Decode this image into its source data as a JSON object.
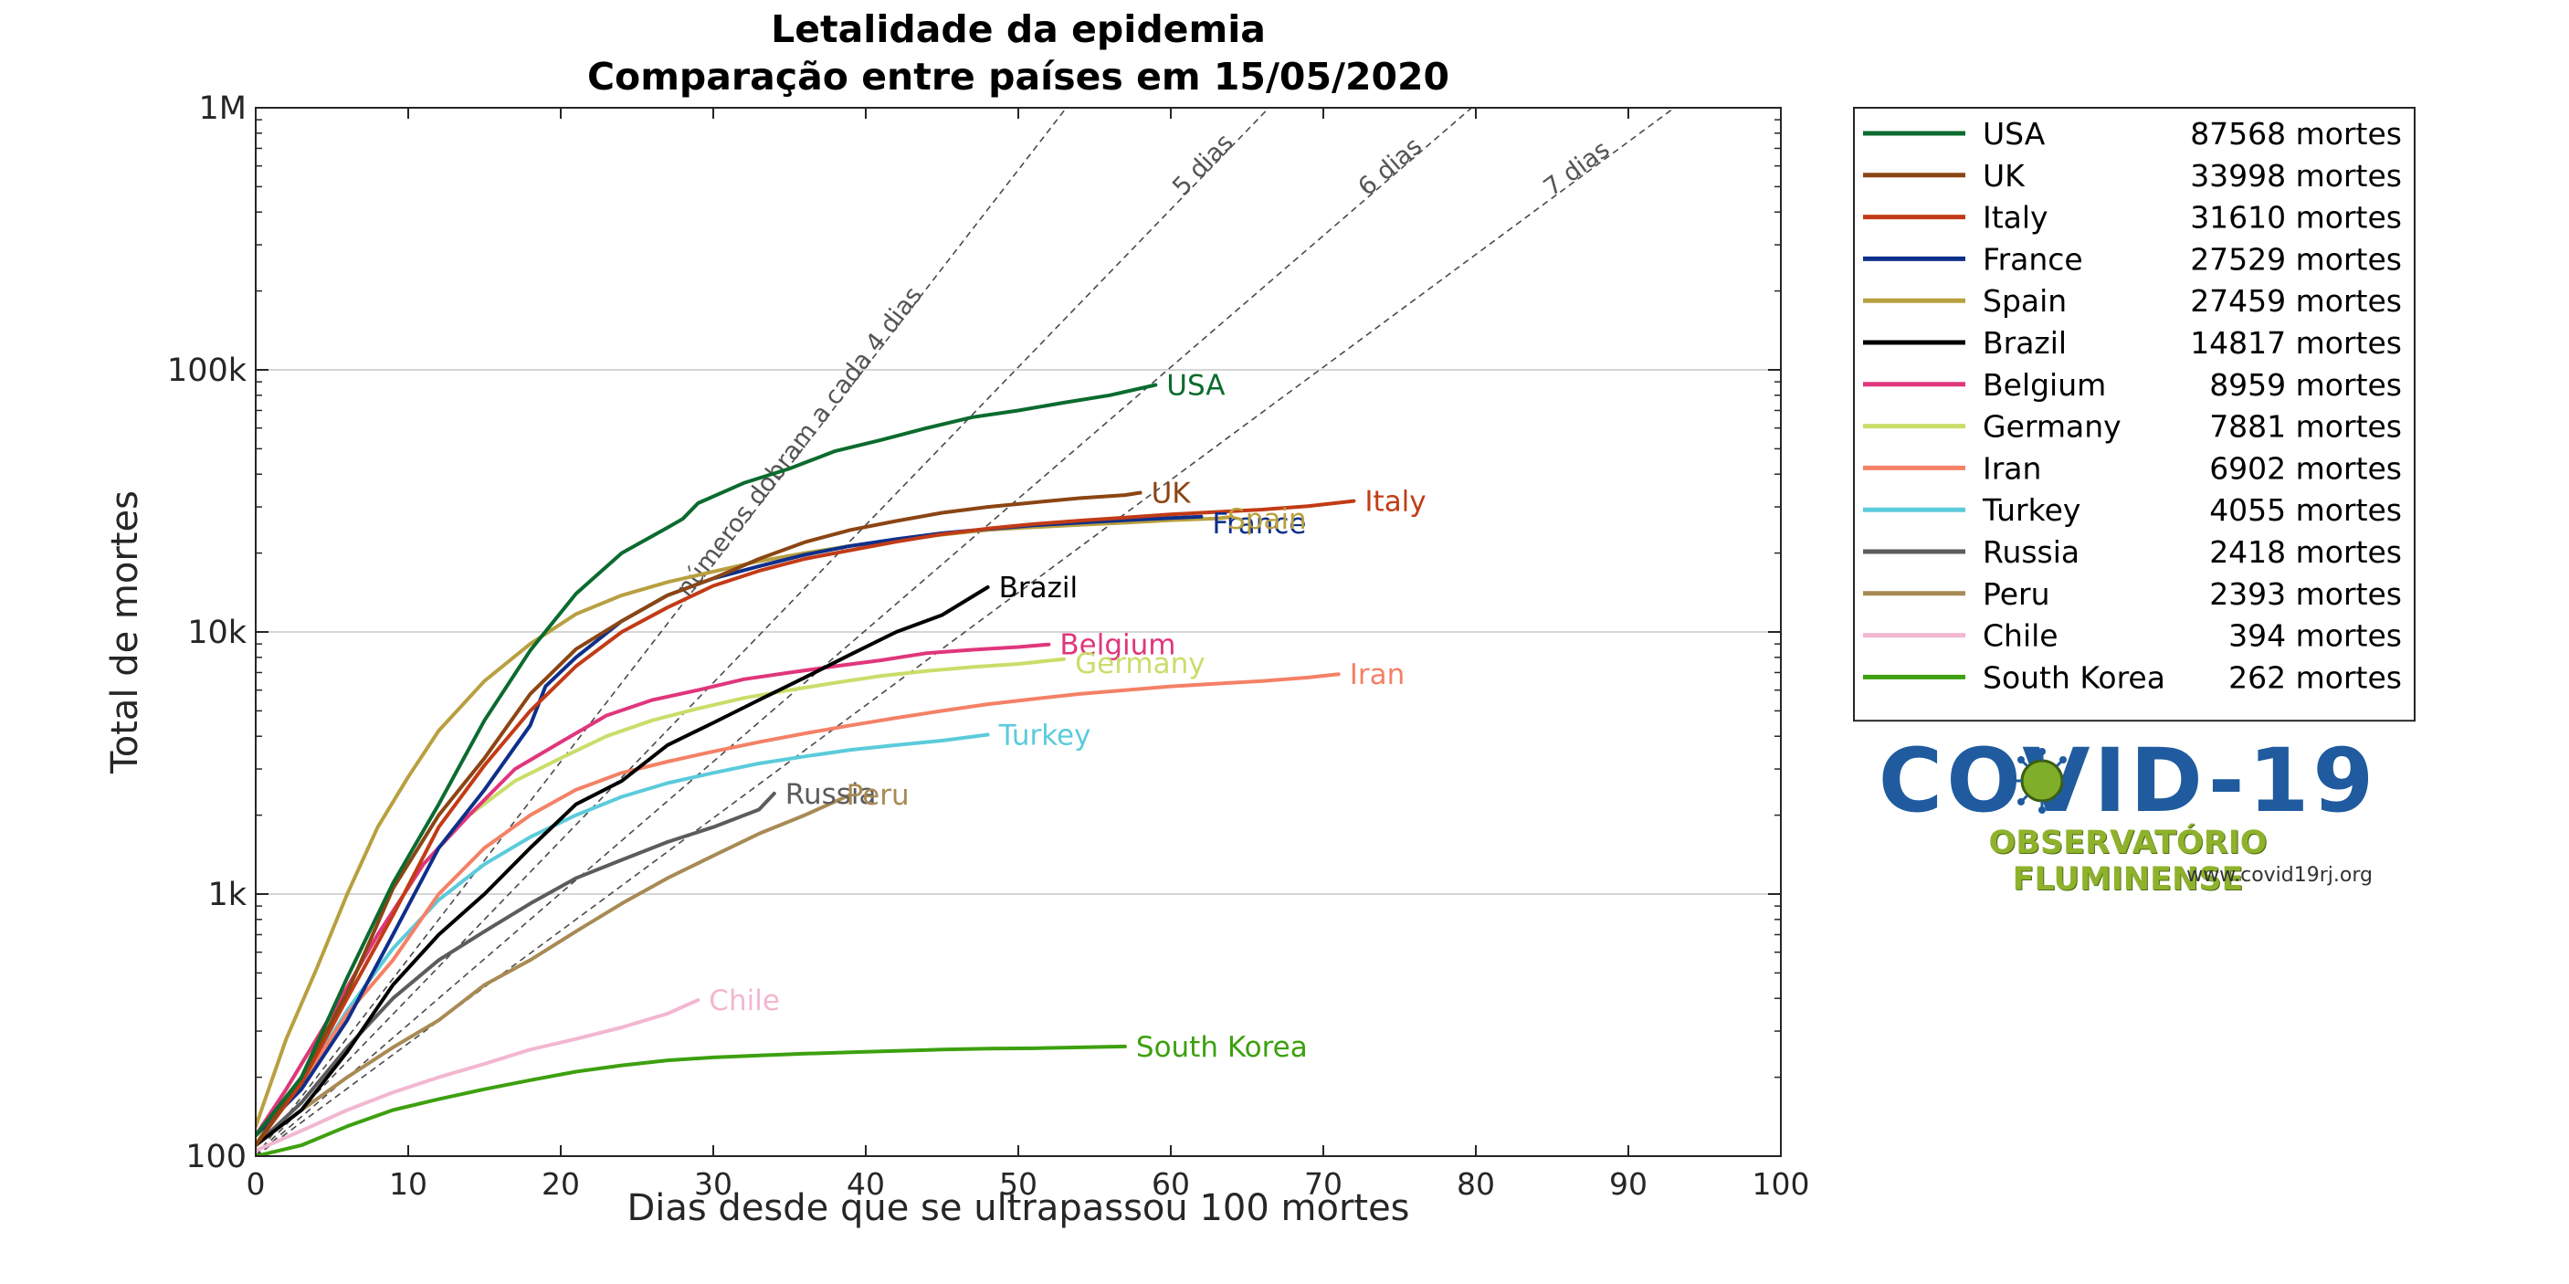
{
  "chart_data": {
    "type": "line",
    "title": "Letalidade da epidemia",
    "subtitle": "Comparação entre países em 15/05/2020",
    "xlabel": "Dias desde que se ultrapassou 100 mortes",
    "ylabel": "Total de mortes",
    "xlim": [
      0,
      100
    ],
    "ylim": [
      100,
      1000000
    ],
    "yscale": "log",
    "x_ticks": [
      "0",
      "10",
      "20",
      "30",
      "40",
      "50",
      "60",
      "70",
      "80",
      "90",
      "100"
    ],
    "y_ticks": [
      "100",
      "1k",
      "10k",
      "100k",
      "1M"
    ],
    "grid": "horizontal",
    "legend_position": "right",
    "legend_suffix": "mortes",
    "doubling_guides": [
      {
        "label": "números dobram a cada 4 dias",
        "days": 4
      },
      {
        "label": "5 dias",
        "days": 5
      },
      {
        "label": "6 dias",
        "days": 6
      },
      {
        "label": "7 dias",
        "days": 7
      }
    ],
    "series": [
      {
        "name": "USA",
        "total": 87568,
        "color": "#0b6b2e",
        "points": [
          [
            0,
            120
          ],
          [
            3,
            200
          ],
          [
            6,
            480
          ],
          [
            9,
            1100
          ],
          [
            12,
            2200
          ],
          [
            15,
            4600
          ],
          [
            18,
            8500
          ],
          [
            21,
            14000
          ],
          [
            24,
            20000
          ],
          [
            27,
            25000
          ],
          [
            28,
            27000
          ],
          [
            29,
            31000
          ],
          [
            32,
            37000
          ],
          [
            35,
            42000
          ],
          [
            38,
            49000
          ],
          [
            41,
            54000
          ],
          [
            44,
            60000
          ],
          [
            47,
            66000
          ],
          [
            50,
            70000
          ],
          [
            53,
            75000
          ],
          [
            56,
            80000
          ],
          [
            59,
            87568
          ]
        ]
      },
      {
        "name": "UK",
        "total": 33998,
        "color": "#8b4513",
        "points": [
          [
            0,
            110
          ],
          [
            3,
            200
          ],
          [
            6,
            420
          ],
          [
            9,
            1050
          ],
          [
            12,
            2000
          ],
          [
            15,
            3300
          ],
          [
            18,
            5800
          ],
          [
            21,
            8600
          ],
          [
            24,
            11000
          ],
          [
            27,
            13800
          ],
          [
            30,
            16000
          ],
          [
            33,
            19000
          ],
          [
            36,
            22000
          ],
          [
            39,
            24500
          ],
          [
            42,
            26500
          ],
          [
            45,
            28500
          ],
          [
            48,
            30000
          ],
          [
            51,
            31200
          ],
          [
            54,
            32400
          ],
          [
            57,
            33300
          ],
          [
            58,
            33998
          ]
        ]
      },
      {
        "name": "Italy",
        "total": 31610,
        "color": "#c23b16",
        "points": [
          [
            0,
            110
          ],
          [
            3,
            190
          ],
          [
            6,
            400
          ],
          [
            9,
            830
          ],
          [
            12,
            1800
          ],
          [
            15,
            3100
          ],
          [
            18,
            5000
          ],
          [
            21,
            7400
          ],
          [
            24,
            10000
          ],
          [
            27,
            12400
          ],
          [
            30,
            15000
          ],
          [
            33,
            17100
          ],
          [
            36,
            19000
          ],
          [
            39,
            20500
          ],
          [
            42,
            22100
          ],
          [
            45,
            23600
          ],
          [
            48,
            24800
          ],
          [
            51,
            25800
          ],
          [
            54,
            26600
          ],
          [
            57,
            27300
          ],
          [
            60,
            28100
          ],
          [
            63,
            28700
          ],
          [
            66,
            29300
          ],
          [
            69,
            30200
          ],
          [
            72,
            31610
          ]
        ]
      },
      {
        "name": "France",
        "total": 27529,
        "color": "#0e2f8a",
        "points": [
          [
            0,
            120
          ],
          [
            3,
            180
          ],
          [
            6,
            330
          ],
          [
            9,
            700
          ],
          [
            12,
            1500
          ],
          [
            15,
            2500
          ],
          [
            18,
            4400
          ],
          [
            19,
            6200
          ],
          [
            21,
            8000
          ],
          [
            24,
            11000
          ],
          [
            27,
            13800
          ],
          [
            30,
            16000
          ],
          [
            33,
            17800
          ],
          [
            36,
            19700
          ],
          [
            39,
            21300
          ],
          [
            42,
            22600
          ],
          [
            45,
            23800
          ],
          [
            48,
            24700
          ],
          [
            51,
            25500
          ],
          [
            54,
            26100
          ],
          [
            57,
            26700
          ],
          [
            60,
            27200
          ],
          [
            62,
            27529
          ]
        ]
      },
      {
        "name": "Spain",
        "total": 27459,
        "color": "#b8a040",
        "points": [
          [
            0,
            130
          ],
          [
            2,
            280
          ],
          [
            4,
            520
          ],
          [
            6,
            1000
          ],
          [
            8,
            1800
          ],
          [
            10,
            2800
          ],
          [
            12,
            4200
          ],
          [
            15,
            6500
          ],
          [
            18,
            9000
          ],
          [
            21,
            11700
          ],
          [
            24,
            13800
          ],
          [
            27,
            15500
          ],
          [
            30,
            17000
          ],
          [
            33,
            18600
          ],
          [
            36,
            20000
          ],
          [
            39,
            21300
          ],
          [
            42,
            22500
          ],
          [
            45,
            23500
          ],
          [
            48,
            24500
          ],
          [
            51,
            25100
          ],
          [
            54,
            25600
          ],
          [
            57,
            26100
          ],
          [
            60,
            26700
          ],
          [
            63,
            27100
          ],
          [
            64,
            27459
          ]
        ]
      },
      {
        "name": "Brazil",
        "total": 14817,
        "color": "#000000",
        "points": [
          [
            0,
            110
          ],
          [
            3,
            150
          ],
          [
            6,
            250
          ],
          [
            9,
            450
          ],
          [
            12,
            700
          ],
          [
            15,
            1000
          ],
          [
            18,
            1500
          ],
          [
            21,
            2200
          ],
          [
            24,
            2700
          ],
          [
            27,
            3700
          ],
          [
            30,
            4500
          ],
          [
            33,
            5500
          ],
          [
            36,
            6700
          ],
          [
            39,
            8200
          ],
          [
            42,
            10000
          ],
          [
            45,
            11600
          ],
          [
            48,
            14817
          ]
        ]
      },
      {
        "name": "Belgium",
        "total": 8959,
        "color": "#e0367c",
        "points": [
          [
            0,
            120
          ],
          [
            2,
            180
          ],
          [
            5,
            350
          ],
          [
            8,
            700
          ],
          [
            11,
            1300
          ],
          [
            14,
            2000
          ],
          [
            17,
            3000
          ],
          [
            20,
            3800
          ],
          [
            23,
            4800
          ],
          [
            26,
            5500
          ],
          [
            29,
            6000
          ],
          [
            32,
            6600
          ],
          [
            35,
            7000
          ],
          [
            38,
            7400
          ],
          [
            41,
            7800
          ],
          [
            44,
            8300
          ],
          [
            47,
            8550
          ],
          [
            50,
            8760
          ],
          [
            52,
            8959
          ]
        ]
      },
      {
        "name": "Germany",
        "total": 7881,
        "color": "#c8de6a",
        "points": [
          [
            0,
            110
          ],
          [
            2,
            180
          ],
          [
            5,
            350
          ],
          [
            8,
            700
          ],
          [
            11,
            1300
          ],
          [
            14,
            2000
          ],
          [
            17,
            2700
          ],
          [
            20,
            3300
          ],
          [
            23,
            4000
          ],
          [
            26,
            4600
          ],
          [
            29,
            5100
          ],
          [
            32,
            5600
          ],
          [
            35,
            6000
          ],
          [
            38,
            6400
          ],
          [
            41,
            6800
          ],
          [
            44,
            7100
          ],
          [
            47,
            7350
          ],
          [
            50,
            7550
          ],
          [
            53,
            7881
          ]
        ]
      },
      {
        "name": "Iran",
        "total": 6902,
        "color": "#f48166",
        "points": [
          [
            0,
            110
          ],
          [
            3,
            190
          ],
          [
            6,
            350
          ],
          [
            9,
            560
          ],
          [
            12,
            1000
          ],
          [
            15,
            1500
          ],
          [
            18,
            2000
          ],
          [
            21,
            2500
          ],
          [
            24,
            2900
          ],
          [
            27,
            3200
          ],
          [
            30,
            3500
          ],
          [
            33,
            3800
          ],
          [
            36,
            4100
          ],
          [
            39,
            4400
          ],
          [
            42,
            4700
          ],
          [
            45,
            5000
          ],
          [
            48,
            5300
          ],
          [
            51,
            5550
          ],
          [
            54,
            5800
          ],
          [
            57,
            6000
          ],
          [
            60,
            6200
          ],
          [
            63,
            6350
          ],
          [
            66,
            6500
          ],
          [
            69,
            6700
          ],
          [
            71,
            6902
          ]
        ]
      },
      {
        "name": "Turkey",
        "total": 4055,
        "color": "#5bcbdb",
        "points": [
          [
            0,
            110
          ],
          [
            3,
            190
          ],
          [
            6,
            360
          ],
          [
            9,
            620
          ],
          [
            12,
            950
          ],
          [
            15,
            1300
          ],
          [
            18,
            1650
          ],
          [
            21,
            2000
          ],
          [
            24,
            2350
          ],
          [
            27,
            2650
          ],
          [
            30,
            2900
          ],
          [
            33,
            3150
          ],
          [
            36,
            3350
          ],
          [
            39,
            3550
          ],
          [
            42,
            3700
          ],
          [
            45,
            3850
          ],
          [
            48,
            4055
          ]
        ]
      },
      {
        "name": "Russia",
        "total": 2418,
        "color": "#5c5c5c",
        "points": [
          [
            0,
            110
          ],
          [
            3,
            160
          ],
          [
            6,
            260
          ],
          [
            9,
            400
          ],
          [
            12,
            560
          ],
          [
            15,
            720
          ],
          [
            18,
            920
          ],
          [
            21,
            1150
          ],
          [
            24,
            1350
          ],
          [
            27,
            1580
          ],
          [
            30,
            1800
          ],
          [
            33,
            2100
          ],
          [
            34,
            2418
          ]
        ]
      },
      {
        "name": "Peru",
        "total": 2393,
        "color": "#a88a54",
        "points": [
          [
            0,
            110
          ],
          [
            3,
            150
          ],
          [
            6,
            200
          ],
          [
            9,
            260
          ],
          [
            12,
            330
          ],
          [
            15,
            450
          ],
          [
            18,
            560
          ],
          [
            21,
            720
          ],
          [
            24,
            920
          ],
          [
            27,
            1150
          ],
          [
            30,
            1400
          ],
          [
            33,
            1700
          ],
          [
            36,
            2000
          ],
          [
            39,
            2393
          ]
        ]
      },
      {
        "name": "Chile",
        "total": 394,
        "color": "#f2b7d1",
        "points": [
          [
            0,
            105
          ],
          [
            3,
            125
          ],
          [
            6,
            150
          ],
          [
            9,
            175
          ],
          [
            12,
            200
          ],
          [
            15,
            225
          ],
          [
            18,
            255
          ],
          [
            21,
            280
          ],
          [
            24,
            310
          ],
          [
            27,
            350
          ],
          [
            29,
            394
          ]
        ]
      },
      {
        "name": "South Korea",
        "total": 262,
        "color": "#3da00f",
        "points": [
          [
            0,
            100
          ],
          [
            3,
            110
          ],
          [
            6,
            130
          ],
          [
            9,
            150
          ],
          [
            12,
            165
          ],
          [
            15,
            180
          ],
          [
            18,
            195
          ],
          [
            21,
            210
          ],
          [
            24,
            222
          ],
          [
            27,
            232
          ],
          [
            30,
            238
          ],
          [
            33,
            242
          ],
          [
            36,
            246
          ],
          [
            39,
            249
          ],
          [
            42,
            252
          ],
          [
            45,
            255
          ],
          [
            48,
            257
          ],
          [
            51,
            258
          ],
          [
            54,
            260
          ],
          [
            57,
            262
          ]
        ]
      }
    ]
  },
  "series_labels": [
    {
      "text": "USA",
      "color": "#0b6b2e",
      "x": 59,
      "y": 87568
    },
    {
      "text": "UK",
      "color": "#8b4513",
      "x": 58,
      "y": 33998
    },
    {
      "text": "Italy",
      "color": "#c23b16",
      "x": 72,
      "y": 31610
    },
    {
      "text": "France",
      "color": "#0e2f8a",
      "x": 62,
      "y": 26000
    },
    {
      "text": "Spain",
      "color": "#b8a040",
      "x": 63,
      "y": 27000
    },
    {
      "text": "Brazil",
      "color": "#000000",
      "x": 48,
      "y": 14817
    },
    {
      "text": "Belgium",
      "color": "#e0367c",
      "x": 52,
      "y": 8959
    },
    {
      "text": "Germany",
      "color": "#c8de6a",
      "x": 53,
      "y": 7600
    },
    {
      "text": "Iran",
      "color": "#f48166",
      "x": 71,
      "y": 6902
    },
    {
      "text": "Turkey",
      "color": "#5bcbdb",
      "x": 48,
      "y": 4055
    },
    {
      "text": "Russia",
      "color": "#5c5c5c",
      "x": 34,
      "y": 2418
    },
    {
      "text": "Peru",
      "color": "#a88a54",
      "x": 38,
      "y": 2393
    },
    {
      "text": "Chile",
      "color": "#f2b7d1",
      "x": 29,
      "y": 394
    },
    {
      "text": "South Korea",
      "color": "#3da00f",
      "x": 57,
      "y": 262
    }
  ],
  "logo": {
    "title": "COVID-19",
    "subtitle": "OBSERVATÓRIO FLUMINENSE",
    "url": "www.covid19rj.org"
  }
}
